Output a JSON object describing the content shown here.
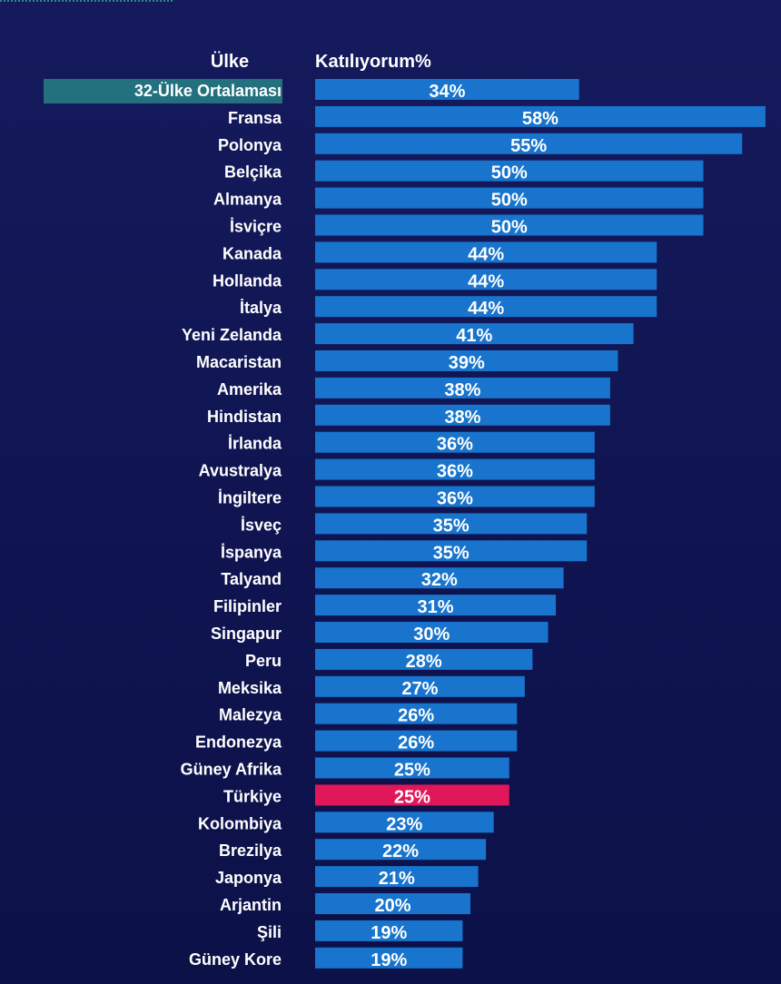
{
  "chart_data": {
    "type": "bar",
    "orientation": "horizontal",
    "category_header": "Ülke",
    "value_header": "Katılıyorum%",
    "categories": [
      "32-Ülke Ortalaması",
      "Fransa",
      "Polonya",
      "Belçika",
      "Almanya",
      "İsviçre",
      "Kanada",
      "Hollanda",
      "İtalya",
      "Yeni Zelanda",
      "Macaristan",
      "Amerika",
      "Hindistan",
      "İrlanda",
      "Avustralya",
      "İngiltere",
      "İsveç",
      "İspanya",
      "Talyand",
      "Filipinler",
      "Singapur",
      "Peru",
      "Meksika",
      "Malezya",
      "Endonezya",
      "Güney Afrika",
      "Türkiye",
      "Kolombiya",
      "Brezilya",
      "Japonya",
      "Arjantin",
      "Şili",
      "Güney Kore"
    ],
    "values": [
      34,
      58,
      55,
      50,
      50,
      50,
      44,
      44,
      44,
      41,
      39,
      38,
      38,
      36,
      36,
      36,
      35,
      35,
      32,
      31,
      30,
      28,
      27,
      26,
      26,
      25,
      25,
      23,
      22,
      21,
      20,
      19,
      19
    ],
    "value_labels": [
      "34%",
      "58%",
      "55%",
      "50%",
      "50%",
      "50%",
      "44%",
      "44%",
      "44%",
      "41%",
      "39%",
      "38%",
      "38%",
      "36%",
      "36%",
      "36%",
      "35%",
      "35%",
      "32%",
      "31%",
      "30%",
      "28%",
      "27%",
      "26%",
      "26%",
      "25%",
      "25%",
      "23%",
      "22%",
      "21%",
      "20%",
      "19%",
      "19%"
    ],
    "highlight_average": "32-Ülke Ortalaması",
    "highlight_country": "Türkiye",
    "colors": {
      "bar": "#1874cc",
      "highlight_bar": "#e0185a",
      "average_label_bg": "#23717f",
      "text": "#ffffff"
    }
  }
}
